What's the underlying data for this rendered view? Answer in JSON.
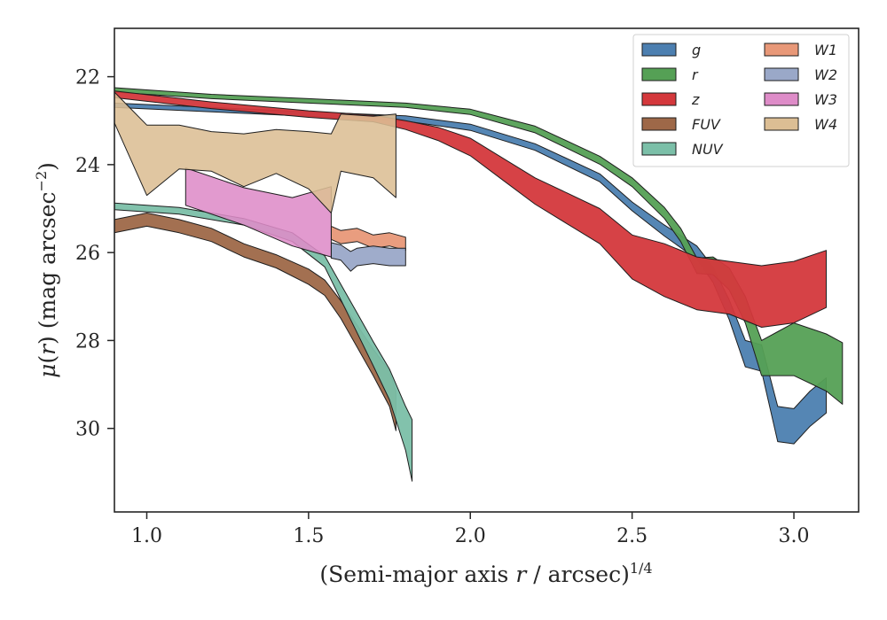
{
  "chart_data": {
    "type": "area",
    "xlabel": "(Semi-major axis r / arcsec)^1/4",
    "ylabel": "μ(r) (mag arcsec^−2)",
    "xlim": [
      0.9,
      3.2
    ],
    "ylim": [
      31.9,
      20.9
    ],
    "y_inverted": true,
    "x_ticks": [
      1.0,
      1.5,
      2.0,
      2.5,
      3.0
    ],
    "x_tick_labels": [
      "1.0",
      "1.5",
      "2.0",
      "2.5",
      "3.0"
    ],
    "y_ticks": [
      22,
      24,
      26,
      28,
      30
    ],
    "y_tick_labels": [
      "22",
      "24",
      "26",
      "28",
      "30"
    ],
    "grid": false,
    "legend_position": "top-right",
    "series": [
      {
        "name": "g",
        "color": "#4c7fb0",
        "x": [
          0.9,
          1.2,
          1.5,
          1.8,
          2.0,
          2.2,
          2.4,
          2.5,
          2.6,
          2.7,
          2.75,
          2.8,
          2.85,
          2.9,
          2.95,
          3.0,
          3.05,
          3.1
        ],
        "y": [
          22.65,
          22.75,
          22.85,
          22.95,
          23.15,
          23.6,
          24.3,
          24.95,
          25.5,
          26.0,
          26.5,
          27.3,
          28.3,
          28.4,
          29.9,
          29.95,
          29.55,
          29.25
        ],
        "thickness": [
          0.1,
          0.1,
          0.1,
          0.12,
          0.14,
          0.15,
          0.18,
          0.2,
          0.25,
          0.3,
          0.35,
          0.45,
          0.6,
          0.6,
          0.8,
          0.8,
          0.8,
          0.8
        ]
      },
      {
        "name": "r",
        "color": "#55a055",
        "x": [
          0.9,
          1.2,
          1.5,
          1.8,
          2.0,
          2.2,
          2.4,
          2.5,
          2.6,
          2.65,
          2.7,
          2.75,
          2.8,
          2.85,
          2.9,
          2.95,
          3.0,
          3.1,
          3.15
        ],
        "y": [
          22.3,
          22.45,
          22.55,
          22.65,
          22.8,
          23.2,
          23.9,
          24.4,
          25.1,
          25.6,
          26.3,
          26.3,
          26.6,
          27.3,
          28.4,
          28.3,
          28.2,
          28.5,
          28.75
        ],
        "thickness": [
          0.1,
          0.1,
          0.1,
          0.1,
          0.12,
          0.15,
          0.18,
          0.2,
          0.25,
          0.3,
          0.35,
          0.4,
          0.5,
          0.6,
          0.8,
          1.0,
          1.2,
          1.3,
          1.4
        ]
      },
      {
        "name": "z",
        "color": "#d4383c",
        "x": [
          0.9,
          1.2,
          1.5,
          1.7,
          1.8,
          1.9,
          2.0,
          2.1,
          2.2,
          2.3,
          2.4,
          2.5,
          2.6,
          2.7,
          2.8,
          2.9,
          3.0,
          3.1
        ],
        "y": [
          22.4,
          22.65,
          22.85,
          22.95,
          23.1,
          23.3,
          23.6,
          24.1,
          24.6,
          25.0,
          25.4,
          26.1,
          26.4,
          26.7,
          26.8,
          27.0,
          26.9,
          26.6
        ],
        "thickness": [
          0.15,
          0.15,
          0.15,
          0.15,
          0.2,
          0.3,
          0.4,
          0.5,
          0.6,
          0.7,
          0.8,
          1.0,
          1.2,
          1.2,
          1.2,
          1.4,
          1.4,
          1.3
        ]
      },
      {
        "name": "FUV",
        "color": "#9e6848",
        "x": [
          0.9,
          1.0,
          1.1,
          1.2,
          1.3,
          1.4,
          1.5,
          1.55,
          1.6,
          1.65,
          1.7,
          1.75,
          1.77
        ],
        "y": [
          25.4,
          25.25,
          25.4,
          25.6,
          25.95,
          26.2,
          26.55,
          26.8,
          27.3,
          27.9,
          28.5,
          29.1,
          29.6
        ],
        "thickness": [
          0.3,
          0.3,
          0.3,
          0.3,
          0.3,
          0.3,
          0.35,
          0.35,
          0.4,
          0.5,
          0.6,
          0.8,
          0.9
        ]
      },
      {
        "name": "NUV",
        "color": "#7bbfa8",
        "x": [
          0.9,
          1.1,
          1.3,
          1.45,
          1.55,
          1.6,
          1.65,
          1.7,
          1.75,
          1.8,
          1.82
        ],
        "y": [
          24.95,
          25.05,
          25.3,
          25.65,
          26.2,
          26.9,
          27.6,
          28.3,
          29.0,
          30.0,
          30.5
        ],
        "thickness": [
          0.15,
          0.15,
          0.15,
          0.2,
          0.25,
          0.35,
          0.45,
          0.55,
          0.7,
          1.0,
          1.4
        ]
      },
      {
        "name": "W1",
        "color": "#e89878",
        "x": [
          1.57,
          1.6,
          1.65,
          1.7,
          1.75,
          1.8
        ],
        "y": [
          25.55,
          25.65,
          25.6,
          25.75,
          25.7,
          25.8
        ],
        "thickness": [
          0.3,
          0.3,
          0.3,
          0.3,
          0.3,
          0.3
        ]
      },
      {
        "name": "W2",
        "color": "#9aa8c8",
        "x": [
          1.57,
          1.6,
          1.63,
          1.65,
          1.7,
          1.75,
          1.8
        ],
        "y": [
          25.95,
          26.0,
          26.2,
          26.1,
          26.05,
          26.1,
          26.1
        ],
        "thickness": [
          0.35,
          0.35,
          0.45,
          0.4,
          0.4,
          0.4,
          0.4
        ]
      },
      {
        "name": "W3",
        "color": "#de8cc8",
        "x": [
          1.12,
          1.3,
          1.45,
          1.57
        ],
        "y": [
          24.5,
          24.95,
          25.3,
          25.3
        ],
        "thickness": [
          0.85,
          0.85,
          1.1,
          1.6
        ]
      },
      {
        "name": "W4",
        "color": "#dcbe94",
        "x": [
          0.9,
          1.0,
          1.1,
          1.2,
          1.3,
          1.4,
          1.5,
          1.57,
          1.6,
          1.7,
          1.77
        ],
        "y": [
          22.7,
          23.9,
          23.6,
          23.7,
          23.9,
          23.7,
          23.9,
          24.2,
          23.5,
          23.6,
          23.8
        ],
        "thickness": [
          0.7,
          1.6,
          1.0,
          0.9,
          1.2,
          1.0,
          1.3,
          1.8,
          1.3,
          1.4,
          1.9
        ]
      }
    ]
  }
}
